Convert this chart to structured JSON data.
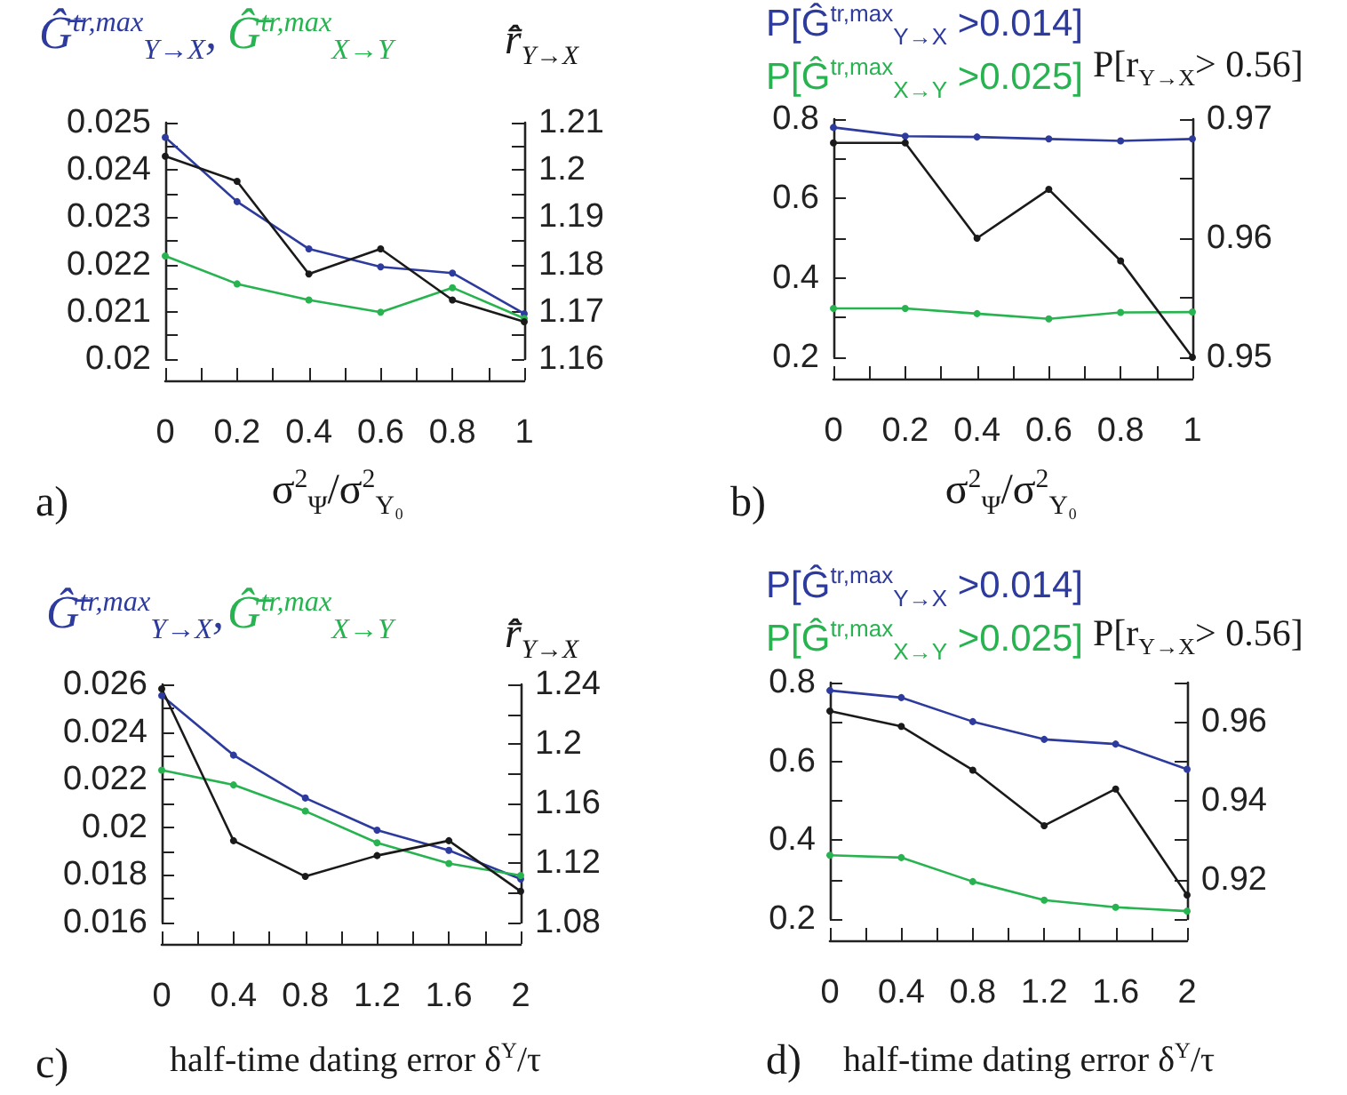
{
  "chart_data": [
    {
      "type": "line",
      "xlabel": "σ$^{2}$$_{Ψ}$/σ$^{2}$$_{Y₀}$",
      "y2label": "r̂̄$_{Y→X}$",
      "annotations": [
        "a)"
      ],
      "marker": "circle",
      "x": [
        0,
        0.2,
        0.4,
        0.6,
        0.8,
        1
      ],
      "xlim": [
        0,
        1
      ],
      "xticks": [
        0,
        {
          "value": 0.1,
          "label": null
        },
        0.2,
        {
          "value": 0.3,
          "label": null
        },
        0.4,
        {
          "value": 0.5,
          "label": null
        },
        0.6,
        {
          "value": 0.7,
          "label": null
        },
        0.8,
        {
          "value": 0.9,
          "label": null
        },
        1
      ],
      "ylim": [
        0.02,
        0.025
      ],
      "yticks": [
        0.02,
        {
          "value": 0.0205,
          "label": null
        },
        0.021,
        {
          "value": 0.0215,
          "label": null
        },
        0.022,
        {
          "value": 0.0225,
          "label": null
        },
        0.023,
        {
          "value": 0.0235,
          "label": null
        },
        0.024,
        {
          "value": 0.0245,
          "label": null
        },
        0.025
      ],
      "y2lim": [
        1.16,
        1.21
      ],
      "y2ticks": [
        1.16,
        {
          "value": 1.165,
          "label": null
        },
        1.17,
        {
          "value": 1.175,
          "label": null
        },
        1.18,
        {
          "value": 1.185,
          "label": null
        },
        1.19,
        {
          "value": 1.195,
          "label": null
        },
        1.2,
        {
          "value": 1.205,
          "label": null
        },
        1.21
      ],
      "series": [
        {
          "name": "Ĝ̄$^{tr,max}$$_{Y→X}$,",
          "color": "#2e3b9e",
          "values": [
            0.02469,
            0.02333,
            0.02233,
            0.02195,
            0.02182,
            0.02096
          ]
        },
        {
          "name": "Ĝ̄$^{tr,max}$$_{X→Y}$",
          "color": "#27b34f",
          "values": [
            0.02218,
            0.02159,
            0.02125,
            0.02099,
            0.02151,
            0.02086
          ]
        },
        {
          "color": "#1a1a1a",
          "axis": "y2",
          "values": [
            1.2029,
            1.1976,
            1.178,
            1.1833,
            1.1725,
            1.1679
          ]
        }
      ]
    },
    {
      "type": "line",
      "xlabel": "σ$^{2}$$_{Ψ}$/σ$^{2}$$_{Y₀}$",
      "y2label": "P[r$_{Y→X}$> 0.56]",
      "annotations": [
        "b)"
      ],
      "marker": "circle",
      "x": [
        0,
        0.2,
        0.4,
        0.6,
        0.8,
        1
      ],
      "xlim": [
        0,
        1
      ],
      "xticks": [
        0,
        {
          "value": 0.1,
          "label": null
        },
        0.2,
        {
          "value": 0.3,
          "label": null
        },
        0.4,
        {
          "value": 0.5,
          "label": null
        },
        0.6,
        {
          "value": 0.7,
          "label": null
        },
        0.8,
        {
          "value": 0.9,
          "label": null
        },
        1
      ],
      "ylim": [
        0.2,
        0.8
      ],
      "yticks": [
        0.2,
        {
          "value": 0.3,
          "label": null
        },
        0.4,
        {
          "value": 0.5,
          "label": null
        },
        0.6,
        {
          "value": 0.7,
          "label": null
        },
        0.8
      ],
      "y2lim": [
        0.95,
        0.97
      ],
      "y2ticks": [
        0.95,
        {
          "value": 0.955,
          "label": null
        },
        0.96,
        {
          "value": 0.965,
          "label": null
        },
        0.97
      ],
      "series": [
        {
          "name": "P[Ĝ$^{tr,max}$$_{Y→X}$ >0.014]",
          "color": "#2e3b9e",
          "values": [
            0.779,
            0.757,
            0.755,
            0.75,
            0.745,
            0.75
          ]
        },
        {
          "name": "P[Ĝ$^{tr,max}$$_{X→Y}$ >0.025]",
          "color": "#27b34f",
          "values": [
            0.323,
            0.323,
            0.31,
            0.297,
            0.313,
            0.314
          ]
        },
        {
          "color": "#1a1a1a",
          "axis": "y2",
          "values": [
            0.968,
            0.968,
            0.96,
            0.9641,
            0.9581,
            0.95
          ]
        }
      ]
    },
    {
      "type": "line",
      "xlabel": "half-time dating error δ$^{Y}$/τ",
      "y2label": "r̂̄$_{Y→X}$",
      "annotations": [
        "c)"
      ],
      "marker": "circle",
      "x": [
        0,
        0.4,
        0.8,
        1.2,
        1.6,
        2
      ],
      "xlim": [
        0,
        2
      ],
      "xticks": [
        0,
        {
          "value": 0.2,
          "label": null
        },
        0.4,
        {
          "value": 0.6,
          "label": null
        },
        0.8,
        {
          "value": 1,
          "label": null
        },
        1.2,
        {
          "value": 1.4,
          "label": null
        },
        1.6,
        {
          "value": 1.8,
          "label": null
        },
        2
      ],
      "ylim": [
        0.016,
        0.026
      ],
      "yticks": [
        0.016,
        {
          "value": 0.017,
          "label": null
        },
        0.018,
        {
          "value": 0.019,
          "label": null
        },
        0.02,
        {
          "value": 0.021,
          "label": null
        },
        0.022,
        {
          "value": 0.023,
          "label": null
        },
        0.024,
        {
          "value": 0.025,
          "label": null
        },
        0.026
      ],
      "y2lim": [
        1.08,
        1.24
      ],
      "y2ticks": [
        1.08,
        {
          "value": 1.1,
          "label": null
        },
        1.12,
        {
          "value": 1.14,
          "label": null
        },
        1.16,
        {
          "value": 1.18,
          "label": null
        },
        1.2,
        {
          "value": 1.22,
          "label": null
        },
        1.24
      ],
      "series": [
        {
          "name": "Ĝ̄$^{tr,max}$$_{Y→X}$,",
          "color": "#2e3b9e",
          "values": [
            0.02553,
            0.02303,
            0.02123,
            0.01988,
            0.01903,
            0.01783
          ]
        },
        {
          "name": "Ĝ̄$^{tr,max}$$_{X→Y}$",
          "color": "#27b34f",
          "values": [
            0.0224,
            0.02178,
            0.02068,
            0.01935,
            0.01848,
            0.01798
          ]
        },
        {
          "color": "#1a1a1a",
          "axis": "y2",
          "values": [
            1.237,
            1.135,
            1.111,
            1.125,
            1.135,
            1.101
          ]
        }
      ]
    },
    {
      "type": "line",
      "xlabel": "half-time dating error δ$^{Y}$/τ",
      "y2label": "P[r$_{Y→X}$> 0.56]",
      "annotations": [
        "d)"
      ],
      "marker": "circle",
      "x": [
        0,
        0.4,
        0.8,
        1.2,
        1.6,
        2
      ],
      "xlim": [
        0,
        2
      ],
      "xticks": [
        0,
        {
          "value": 0.2,
          "label": null
        },
        0.4,
        {
          "value": 0.6,
          "label": null
        },
        0.8,
        {
          "value": 1,
          "label": null
        },
        1.2,
        {
          "value": 1.4,
          "label": null
        },
        1.6,
        {
          "value": 1.8,
          "label": null
        },
        2
      ],
      "ylim": [
        0.2,
        0.8
      ],
      "yticks": [
        0.2,
        {
          "value": 0.3,
          "label": null
        },
        0.4,
        {
          "value": 0.5,
          "label": null
        },
        0.6,
        {
          "value": 0.7,
          "label": null
        },
        0.8
      ],
      "y2lim": [
        0.91,
        0.97
      ],
      "y2ticks": [
        {
          "value": 0.91,
          "label": null
        },
        0.92,
        {
          "value": 0.93,
          "label": null
        },
        0.94,
        {
          "value": 0.95,
          "label": null
        },
        0.96,
        {
          "value": 0.97,
          "label": null
        }
      ],
      "series": [
        {
          "name": "P[Ĝ$^{tr,max}$$_{Y→X}$ >0.014]",
          "color": "#2e3b9e",
          "values": [
            0.78,
            0.762,
            0.701,
            0.656,
            0.644,
            0.58
          ]
        },
        {
          "name": "P[Ĝ$^{tr,max}$$_{X→Y}$ >0.025]",
          "color": "#27b34f",
          "values": [
            0.362,
            0.356,
            0.295,
            0.248,
            0.23,
            0.22
          ]
        },
        {
          "color": "#1a1a1a",
          "axis": "y2",
          "values": [
            0.9628,
            0.9589,
            0.9478,
            0.9337,
            0.943,
            0.9161
          ]
        }
      ]
    }
  ]
}
